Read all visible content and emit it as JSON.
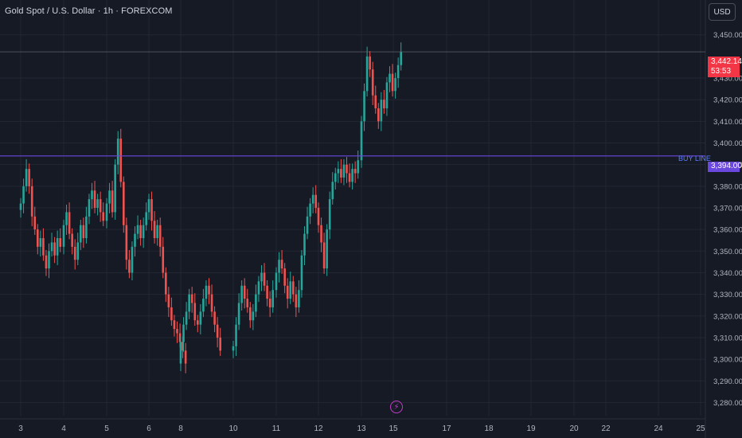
{
  "header": {
    "title": "Gold Spot / U.S. Dollar · 1h · FOREXCOM",
    "currency": "USD"
  },
  "current_price": {
    "price": "3,442.14",
    "countdown": "53:53",
    "color": "#f23645"
  },
  "buy_line": {
    "label": "BUY LINE",
    "price": 3394.0,
    "price_label": "3,394.00",
    "color": "#6a47dd"
  },
  "colors": {
    "up": "#26a69a",
    "down": "#ef5350",
    "background": "#161a25",
    "grid": "#232633"
  },
  "icons": {
    "flash": "lightning-icon"
  },
  "chart_data": {
    "type": "candlestick",
    "title": "Gold Spot / U.S. Dollar · 1h · FOREXCOM",
    "ylim": [
      3275,
      3458
    ],
    "y_ticks": [
      "3,280.00",
      "3,290.00",
      "3,300.00",
      "3,310.00",
      "3,320.00",
      "3,330.00",
      "3,340.00",
      "3,350.00",
      "3,360.00",
      "3,370.00",
      "3,380.00",
      "3,390.00",
      "3,400.00",
      "3,410.00",
      "3,420.00",
      "3,430.00",
      "3,450.00"
    ],
    "x_ticks": [
      "3",
      "4",
      "5",
      "6",
      "8",
      "10",
      "11",
      "12",
      "13",
      "15",
      "17",
      "18",
      "19",
      "20",
      "22",
      "24",
      "25"
    ],
    "series": [
      {
        "anchor": "3",
        "close": [
          3372,
          3380,
          3388,
          3380,
          3366,
          3360,
          3352,
          3356,
          3348,
          3342,
          3350,
          3354,
          3348,
          3356,
          3352
        ]
      },
      {
        "anchor": "4",
        "close": [
          3362,
          3368,
          3358,
          3352,
          3346,
          3354,
          3362,
          3356,
          3366,
          3374,
          3378,
          3370,
          3374,
          3368,
          3364
        ]
      },
      {
        "anchor": "5",
        "close": [
          3372,
          3378,
          3368,
          3390,
          3402,
          3382,
          3362,
          3346,
          3340,
          3352,
          3358,
          3362,
          3356,
          3362,
          3368
        ]
      },
      {
        "anchor": "6",
        "close": [
          3374,
          3364,
          3356,
          3362,
          3352,
          3340,
          3330,
          3324,
          3318,
          3314,
          3312,
          3308,
          3304,
          3298
        ]
      },
      {
        "anchor": "8",
        "close": [
          3308,
          3316,
          3322,
          3330,
          3326,
          3318,
          3316,
          3322,
          3328,
          3334,
          3330,
          3322,
          3316,
          3310,
          3304
        ]
      },
      {
        "anchor": "10",
        "close": [
          3306,
          3316,
          3326,
          3334,
          3328,
          3324,
          3318,
          3322,
          3330,
          3336,
          3340,
          3334,
          3328,
          3324,
          3332
        ]
      },
      {
        "anchor": "11",
        "close": [
          3340,
          3346,
          3342,
          3334,
          3328,
          3336,
          3330,
          3324,
          3332,
          3348,
          3358,
          3366,
          3372,
          3376,
          3370
        ]
      },
      {
        "anchor": "12",
        "close": [
          3362,
          3354,
          3342,
          3360,
          3374,
          3382,
          3386,
          3388,
          3384,
          3390,
          3386,
          3382,
          3388,
          3386,
          3392
        ]
      },
      {
        "anchor": "13",
        "close": [
          3410,
          3424,
          3440,
          3434,
          3422,
          3416,
          3410,
          3420,
          3416,
          3428,
          3432,
          3424,
          3430,
          3436,
          3442
        ]
      }
    ],
    "last_price": 3442.14
  }
}
